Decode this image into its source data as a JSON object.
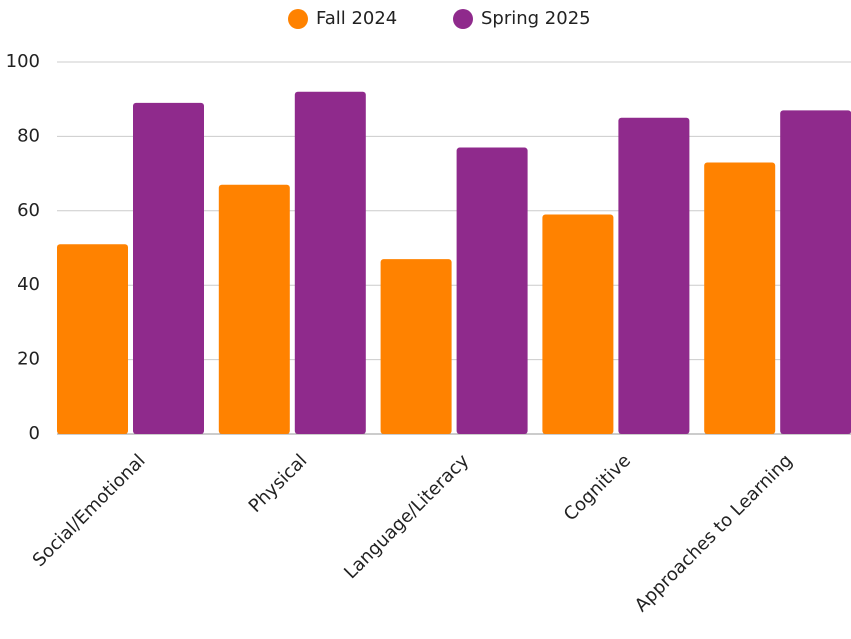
{
  "chart_data": {
    "type": "bar",
    "categories": [
      "Social/Emotional",
      "Physical",
      "Language/Literacy",
      "Cognitive",
      "Approaches to Learning"
    ],
    "series": [
      {
        "name": "Fall 2024",
        "color": "#ff8200",
        "values": [
          51,
          67,
          47,
          59,
          73
        ]
      },
      {
        "name": "Spring 2025",
        "color": "#8f2a8c",
        "values": [
          89,
          92,
          77,
          85,
          87
        ]
      }
    ],
    "ylim": [
      0,
      100
    ],
    "yticks": [
      0,
      20,
      40,
      60,
      80,
      100
    ],
    "grid": true,
    "legend": "top"
  }
}
